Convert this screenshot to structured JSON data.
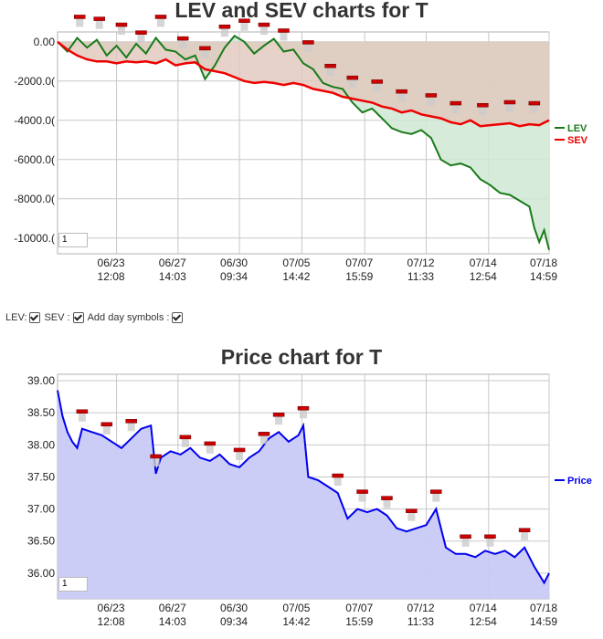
{
  "controls": {
    "lev_label": "LEV:",
    "sev_label": "SEV :",
    "day_symbols_label": "Add day symbols :",
    "lev_checked": true,
    "sev_checked": true,
    "day_symbols_checked": true
  },
  "chart_data": [
    {
      "type": "line",
      "title": "LEV and SEV charts for T",
      "page_value": "1",
      "y_tick_labels": [
        "0.00",
        "-2000.0(",
        "-4000.0(",
        "-6000.0(",
        "-8000.0(",
        "-10000.("
      ],
      "y_ticks": [
        0,
        -2000,
        -4000,
        -6000,
        -8000,
        -10000
      ],
      "ylim": [
        -10800,
        500
      ],
      "x_tick_labels": [
        [
          "06/23",
          "12:08"
        ],
        [
          "06/27",
          "14:03"
        ],
        [
          "06/30",
          "09:34"
        ],
        [
          "07/05",
          "14:42"
        ],
        [
          "07/07",
          "15:59"
        ],
        [
          "07/12",
          "11:33"
        ],
        [
          "07/14",
          "12:54"
        ],
        [
          "07/18",
          "14:59"
        ]
      ],
      "x_ticks": [
        0.12,
        0.245,
        0.37,
        0.497,
        0.625,
        0.75,
        0.877,
        1.0
      ],
      "grid": true,
      "legend_position": "right",
      "colors": {
        "LEV": "#1a7a1a",
        "SEV": "#ee0000",
        "fill_lev": "#cfe7d3",
        "fill_sev": "#f6cccc",
        "fill_between": "#d6c6b7"
      },
      "series": [
        {
          "name": "LEV",
          "x": [
            0.0,
            0.02,
            0.04,
            0.06,
            0.08,
            0.1,
            0.12,
            0.14,
            0.16,
            0.18,
            0.2,
            0.22,
            0.24,
            0.26,
            0.28,
            0.3,
            0.32,
            0.34,
            0.36,
            0.38,
            0.4,
            0.42,
            0.44,
            0.46,
            0.48,
            0.5,
            0.52,
            0.54,
            0.56,
            0.58,
            0.6,
            0.62,
            0.64,
            0.66,
            0.68,
            0.7,
            0.72,
            0.74,
            0.76,
            0.78,
            0.8,
            0.82,
            0.84,
            0.86,
            0.88,
            0.9,
            0.92,
            0.94,
            0.96,
            0.97,
            0.98,
            0.99,
            1.0
          ],
          "values": [
            0,
            -500,
            200,
            -300,
            100,
            -700,
            -200,
            -800,
            -100,
            -600,
            200,
            -400,
            -500,
            -900,
            -700,
            -1900,
            -1200,
            -300,
            300,
            0,
            -600,
            -200,
            150,
            -500,
            -400,
            -1100,
            -1400,
            -2100,
            -2300,
            -2400,
            -3100,
            -3600,
            -3400,
            -3900,
            -4400,
            -4600,
            -4700,
            -4500,
            -4900,
            -6000,
            -6300,
            -6200,
            -6400,
            -7000,
            -7300,
            -7700,
            -7800,
            -8100,
            -8400,
            -9500,
            -10200,
            -9600,
            -10600
          ]
        },
        {
          "name": "SEV",
          "x": [
            0.0,
            0.02,
            0.04,
            0.06,
            0.08,
            0.1,
            0.12,
            0.14,
            0.16,
            0.18,
            0.2,
            0.22,
            0.24,
            0.26,
            0.28,
            0.3,
            0.32,
            0.34,
            0.36,
            0.38,
            0.4,
            0.42,
            0.44,
            0.46,
            0.48,
            0.5,
            0.52,
            0.54,
            0.56,
            0.58,
            0.6,
            0.62,
            0.64,
            0.66,
            0.68,
            0.7,
            0.72,
            0.74,
            0.76,
            0.78,
            0.8,
            0.82,
            0.84,
            0.86,
            0.88,
            0.9,
            0.92,
            0.94,
            0.96,
            0.98,
            1.0
          ],
          "values": [
            0,
            -400,
            -700,
            -900,
            -1000,
            -1000,
            -1100,
            -1000,
            -1050,
            -1000,
            -1100,
            -900,
            -1200,
            -1100,
            -1050,
            -1400,
            -1500,
            -1600,
            -1800,
            -2000,
            -2100,
            -2050,
            -2100,
            -2200,
            -2100,
            -2200,
            -2400,
            -2500,
            -2600,
            -2800,
            -2900,
            -3000,
            -3100,
            -3300,
            -3400,
            -3600,
            -3500,
            -3700,
            -3800,
            -3900,
            -4100,
            -4200,
            -4000,
            -4300,
            -4250,
            -4200,
            -4150,
            -4300,
            -4200,
            -4250,
            -4000
          ]
        }
      ],
      "day_symbols": [
        0.045,
        0.085,
        0.13,
        0.17,
        0.21,
        0.255,
        0.3,
        0.34,
        0.38,
        0.42,
        0.46,
        0.51,
        0.555,
        0.6,
        0.65,
        0.7,
        0.76,
        0.81,
        0.865,
        0.92,
        0.97
      ]
    },
    {
      "type": "area",
      "title": "Price chart for T",
      "page_value": "1",
      "y_tick_labels": [
        "39.00",
        "38.50",
        "38.00",
        "37.50",
        "37.00",
        "36.50",
        "36.00"
      ],
      "y_ticks": [
        39.0,
        38.5,
        38.0,
        37.5,
        37.0,
        36.5,
        36.0
      ],
      "ylim": [
        35.6,
        39.1
      ],
      "x_tick_labels": [
        [
          "06/23",
          "12:08"
        ],
        [
          "06/27",
          "14:03"
        ],
        [
          "06/30",
          "09:34"
        ],
        [
          "07/05",
          "14:42"
        ],
        [
          "07/07",
          "15:59"
        ],
        [
          "07/12",
          "11:33"
        ],
        [
          "07/14",
          "12:54"
        ],
        [
          "07/18",
          "14:59"
        ]
      ],
      "x_ticks": [
        0.12,
        0.245,
        0.37,
        0.497,
        0.625,
        0.75,
        0.877,
        1.0
      ],
      "grid": true,
      "legend_position": "right",
      "colors": {
        "line": "#0000ee",
        "fill": "#c9caf7"
      },
      "series": [
        {
          "name": "Price",
          "x": [
            0.0,
            0.01,
            0.02,
            0.03,
            0.04,
            0.05,
            0.07,
            0.09,
            0.11,
            0.13,
            0.15,
            0.17,
            0.19,
            0.2,
            0.21,
            0.23,
            0.25,
            0.27,
            0.29,
            0.31,
            0.33,
            0.35,
            0.37,
            0.39,
            0.41,
            0.43,
            0.45,
            0.47,
            0.49,
            0.5,
            0.51,
            0.53,
            0.55,
            0.57,
            0.59,
            0.61,
            0.63,
            0.65,
            0.67,
            0.69,
            0.71,
            0.73,
            0.75,
            0.77,
            0.79,
            0.81,
            0.83,
            0.85,
            0.87,
            0.89,
            0.91,
            0.93,
            0.95,
            0.97,
            0.99,
            1.0
          ],
          "values": [
            38.85,
            38.45,
            38.2,
            38.05,
            37.95,
            38.25,
            38.2,
            38.15,
            38.05,
            37.95,
            38.1,
            38.25,
            38.3,
            37.55,
            37.8,
            37.9,
            37.85,
            37.95,
            37.8,
            37.75,
            37.85,
            37.7,
            37.65,
            37.8,
            37.9,
            38.1,
            38.2,
            38.05,
            38.15,
            38.3,
            37.5,
            37.45,
            37.35,
            37.25,
            36.85,
            37.0,
            36.95,
            37.0,
            36.9,
            36.7,
            36.65,
            36.7,
            36.75,
            37.0,
            36.4,
            36.3,
            36.3,
            36.25,
            36.35,
            36.3,
            36.35,
            36.25,
            36.4,
            36.1,
            35.85,
            36.0
          ]
        }
      ],
      "day_symbols": [
        0.05,
        0.1,
        0.15,
        0.2,
        0.26,
        0.31,
        0.37,
        0.42,
        0.45,
        0.5,
        0.57,
        0.62,
        0.67,
        0.72,
        0.77,
        0.83,
        0.88,
        0.95
      ]
    }
  ]
}
